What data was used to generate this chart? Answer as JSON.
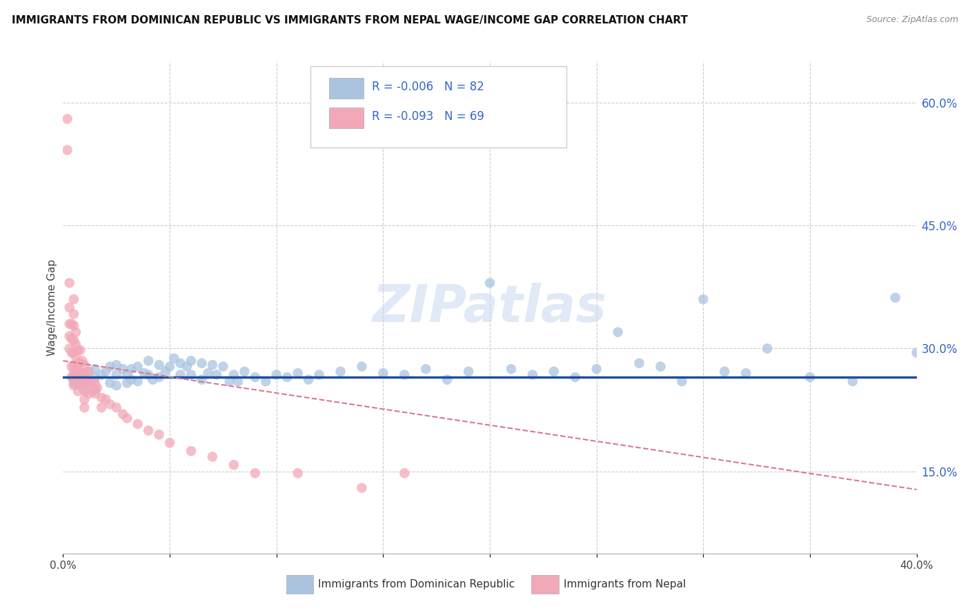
{
  "title": "IMMIGRANTS FROM DOMINICAN REPUBLIC VS IMMIGRANTS FROM NEPAL WAGE/INCOME GAP CORRELATION CHART",
  "source": "Source: ZipAtlas.com",
  "ylabel": "Wage/Income Gap",
  "legend_blue_r": "R = -0.006",
  "legend_blue_n": "N = 82",
  "legend_pink_r": "R = -0.093",
  "legend_pink_n": "N = 69",
  "blue_color": "#aac4e0",
  "pink_color": "#f2a8b8",
  "blue_line_color": "#1a4fa0",
  "pink_line_color": "#d87890",
  "watermark": "ZIPatlas",
  "blue_scatter_x": [
    0.005,
    0.005,
    0.008,
    0.008,
    0.01,
    0.01,
    0.01,
    0.012,
    0.012,
    0.015,
    0.015,
    0.015,
    0.018,
    0.02,
    0.022,
    0.022,
    0.025,
    0.025,
    0.025,
    0.028,
    0.03,
    0.03,
    0.032,
    0.032,
    0.035,
    0.035,
    0.038,
    0.04,
    0.04,
    0.042,
    0.045,
    0.045,
    0.048,
    0.05,
    0.052,
    0.055,
    0.055,
    0.058,
    0.06,
    0.06,
    0.065,
    0.065,
    0.068,
    0.07,
    0.072,
    0.075,
    0.078,
    0.08,
    0.082,
    0.085,
    0.09,
    0.095,
    0.1,
    0.105,
    0.11,
    0.115,
    0.12,
    0.13,
    0.14,
    0.15,
    0.16,
    0.17,
    0.18,
    0.19,
    0.2,
    0.21,
    0.22,
    0.23,
    0.24,
    0.25,
    0.26,
    0.27,
    0.28,
    0.29,
    0.3,
    0.31,
    0.32,
    0.33,
    0.35,
    0.37,
    0.39,
    0.4
  ],
  "blue_scatter_y": [
    0.265,
    0.258,
    0.27,
    0.255,
    0.268,
    0.26,
    0.25,
    0.272,
    0.258,
    0.275,
    0.265,
    0.25,
    0.268,
    0.272,
    0.278,
    0.258,
    0.28,
    0.268,
    0.255,
    0.275,
    0.268,
    0.258,
    0.275,
    0.262,
    0.278,
    0.26,
    0.27,
    0.285,
    0.268,
    0.262,
    0.28,
    0.265,
    0.272,
    0.278,
    0.288,
    0.282,
    0.268,
    0.278,
    0.285,
    0.268,
    0.282,
    0.262,
    0.27,
    0.28,
    0.268,
    0.278,
    0.26,
    0.268,
    0.26,
    0.272,
    0.265,
    0.26,
    0.268,
    0.265,
    0.27,
    0.262,
    0.268,
    0.272,
    0.278,
    0.27,
    0.268,
    0.275,
    0.262,
    0.272,
    0.38,
    0.275,
    0.268,
    0.272,
    0.265,
    0.275,
    0.32,
    0.282,
    0.278,
    0.26,
    0.36,
    0.272,
    0.27,
    0.3,
    0.265,
    0.26,
    0.362,
    0.295
  ],
  "pink_scatter_x": [
    0.002,
    0.002,
    0.003,
    0.003,
    0.003,
    0.003,
    0.003,
    0.004,
    0.004,
    0.004,
    0.004,
    0.004,
    0.005,
    0.005,
    0.005,
    0.005,
    0.005,
    0.005,
    0.005,
    0.005,
    0.005,
    0.006,
    0.006,
    0.006,
    0.006,
    0.007,
    0.007,
    0.007,
    0.007,
    0.007,
    0.008,
    0.008,
    0.008,
    0.008,
    0.009,
    0.009,
    0.009,
    0.01,
    0.01,
    0.01,
    0.01,
    0.01,
    0.01,
    0.012,
    0.012,
    0.012,
    0.014,
    0.014,
    0.015,
    0.015,
    0.016,
    0.018,
    0.018,
    0.02,
    0.022,
    0.025,
    0.028,
    0.03,
    0.035,
    0.04,
    0.045,
    0.05,
    0.06,
    0.07,
    0.08,
    0.09,
    0.11,
    0.14,
    0.16
  ],
  "pink_scatter_y": [
    0.58,
    0.542,
    0.38,
    0.35,
    0.33,
    0.315,
    0.3,
    0.33,
    0.312,
    0.295,
    0.278,
    0.265,
    0.36,
    0.342,
    0.328,
    0.31,
    0.295,
    0.28,
    0.272,
    0.262,
    0.255,
    0.32,
    0.305,
    0.29,
    0.275,
    0.298,
    0.282,
    0.268,
    0.258,
    0.248,
    0.298,
    0.282,
    0.268,
    0.258,
    0.285,
    0.27,
    0.258,
    0.28,
    0.268,
    0.258,
    0.248,
    0.238,
    0.228,
    0.272,
    0.258,
    0.245,
    0.26,
    0.248,
    0.258,
    0.245,
    0.252,
    0.24,
    0.228,
    0.238,
    0.232,
    0.228,
    0.22,
    0.215,
    0.208,
    0.2,
    0.195,
    0.185,
    0.175,
    0.168,
    0.158,
    0.148,
    0.148,
    0.13,
    0.148
  ],
  "xlim": [
    0.0,
    0.4
  ],
  "ylim": [
    0.05,
    0.65
  ],
  "x_ticks": [
    0.0,
    0.05,
    0.1,
    0.15,
    0.2,
    0.25,
    0.3,
    0.35,
    0.4
  ],
  "y_ticks": [
    0.15,
    0.3,
    0.45,
    0.6
  ],
  "y_tick_labels": [
    "15.0%",
    "30.0%",
    "45.0%",
    "60.0%"
  ],
  "blue_line_y0": 0.265,
  "blue_line_y1": 0.265,
  "pink_line_x0": 0.0,
  "pink_line_y0": 0.285,
  "pink_line_x1": 0.4,
  "pink_line_y1": 0.128
}
